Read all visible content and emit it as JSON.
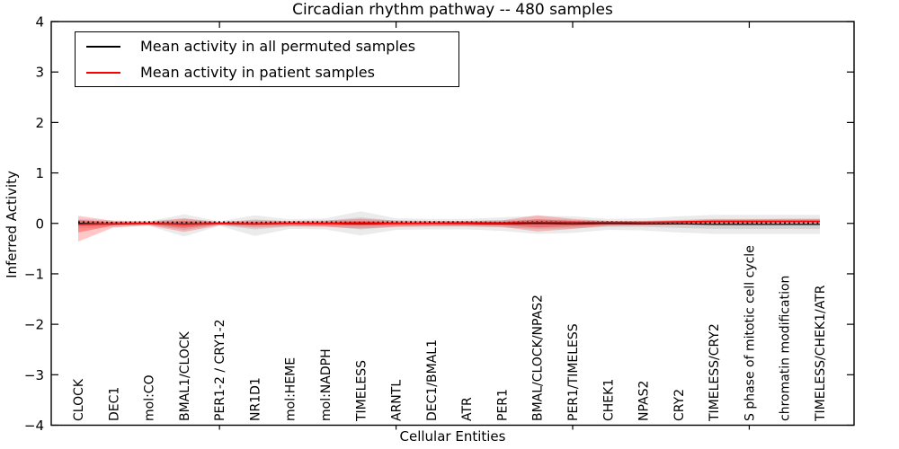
{
  "chart_data": {
    "type": "line",
    "title": "Circadian rhythm pathway -- 480 samples",
    "xlabel": "Cellular Entities",
    "ylabel": "Inferred Activity",
    "ylim": [
      -4,
      4
    ],
    "yticks": [
      -4,
      -3,
      -2,
      -1,
      0,
      1,
      2,
      3,
      4
    ],
    "xticks_major_indices": [
      4,
      9,
      14,
      19
    ],
    "grid": false,
    "legend_position": "upper left",
    "categories": [
      "CLOCK",
      "DEC1",
      "mol:CO",
      "BMAL1/CLOCK",
      "PER1-2 / CRY1-2",
      "NR1D1",
      "mol:HEME",
      "mol:NADPH",
      "TIMELESS",
      "ARNTL",
      "DEC1/BMAL1",
      "ATR",
      "PER1",
      "BMAL/CLOCK/NPAS2",
      "PER1/TIMELESS",
      "CHEK1",
      "NPAS2",
      "CRY2",
      "TIMELESS/CRY2",
      "S phase of mitotic cell cycle",
      "chromatin modification",
      "TIMELESS/CHEK1/ATR"
    ],
    "series": [
      {
        "name": "Mean activity in all permuted samples",
        "color": "#000000",
        "style": "solid-with-dotted-overlay",
        "values": [
          0,
          -0.01,
          0,
          -0.01,
          0,
          -0.01,
          0,
          0,
          -0.01,
          0,
          0,
          0,
          -0.01,
          0,
          -0.01,
          0,
          -0.01,
          -0.01,
          -0.02,
          -0.02,
          -0.02,
          -0.02
        ]
      },
      {
        "name": "Mean activity in patient samples",
        "color": "#ff0000",
        "style": "solid",
        "values": [
          -0.02,
          -0.01,
          0,
          -0.02,
          0,
          -0.01,
          0,
          0,
          0.01,
          0,
          0,
          0.01,
          0.01,
          0.02,
          0.02,
          0.02,
          0.02,
          0.03,
          0.04,
          0.04,
          0.04,
          0.04
        ]
      }
    ],
    "bands": [
      {
        "name": "permuted-outer-band",
        "color": "rgba(0,0,0,0.08)",
        "upper": [
          0.09,
          0.06,
          0.04,
          0.18,
          0.04,
          0.16,
          0.08,
          0.1,
          0.24,
          0.1,
          0.09,
          0.09,
          0.12,
          0.15,
          0.14,
          0.09,
          0.1,
          0.14,
          0.17,
          0.17,
          0.17,
          0.17
        ],
        "lower": [
          -0.1,
          -0.08,
          -0.05,
          -0.26,
          -0.05,
          -0.25,
          -0.11,
          -0.12,
          -0.24,
          -0.13,
          -0.12,
          -0.12,
          -0.15,
          -0.21,
          -0.19,
          -0.13,
          -0.14,
          -0.18,
          -0.21,
          -0.21,
          -0.21,
          -0.21
        ]
      },
      {
        "name": "permuted-inner-band",
        "color": "rgba(0,0,0,0.10)",
        "upper": [
          0.05,
          0.03,
          0.02,
          0.09,
          0.02,
          0.08,
          0.04,
          0.05,
          0.12,
          0.05,
          0.05,
          0.05,
          0.06,
          0.08,
          0.07,
          0.05,
          0.05,
          0.07,
          0.09,
          0.09,
          0.09,
          0.09
        ],
        "lower": [
          -0.05,
          -0.04,
          -0.03,
          -0.13,
          -0.03,
          -0.12,
          -0.06,
          -0.06,
          -0.12,
          -0.07,
          -0.06,
          -0.06,
          -0.08,
          -0.11,
          -0.1,
          -0.07,
          -0.07,
          -0.09,
          -0.11,
          -0.11,
          -0.11,
          -0.11
        ]
      },
      {
        "name": "patient-outer-band",
        "color": "rgba(255,0,0,0.22)",
        "upper": [
          0.15,
          0.05,
          0.04,
          0.1,
          0.03,
          0.06,
          0.05,
          0.06,
          0.09,
          0.06,
          0.05,
          0.05,
          0.06,
          0.16,
          0.09,
          0.05,
          0.05,
          0.06,
          0.08,
          0.08,
          0.09,
          0.09
        ],
        "lower": [
          -0.36,
          -0.08,
          -0.04,
          -0.17,
          -0.04,
          -0.08,
          -0.06,
          -0.07,
          -0.1,
          -0.07,
          -0.06,
          -0.06,
          -0.07,
          -0.16,
          -0.11,
          -0.05,
          -0.04,
          -0.03,
          -0.01,
          -0.01,
          0.0,
          0.0
        ]
      },
      {
        "name": "patient-inner-band",
        "color": "rgba(255,0,0,0.30)",
        "upper": [
          0.07,
          0.03,
          0.02,
          0.05,
          0.02,
          0.03,
          0.03,
          0.03,
          0.05,
          0.03,
          0.03,
          0.03,
          0.03,
          0.08,
          0.05,
          0.03,
          0.03,
          0.04,
          0.06,
          0.06,
          0.06,
          0.06
        ],
        "lower": [
          -0.18,
          -0.04,
          -0.02,
          -0.09,
          -0.02,
          -0.04,
          -0.03,
          -0.04,
          -0.05,
          -0.04,
          -0.03,
          -0.03,
          -0.04,
          -0.08,
          -0.06,
          -0.03,
          -0.02,
          -0.01,
          0.01,
          0.01,
          0.02,
          0.02
        ]
      }
    ]
  }
}
